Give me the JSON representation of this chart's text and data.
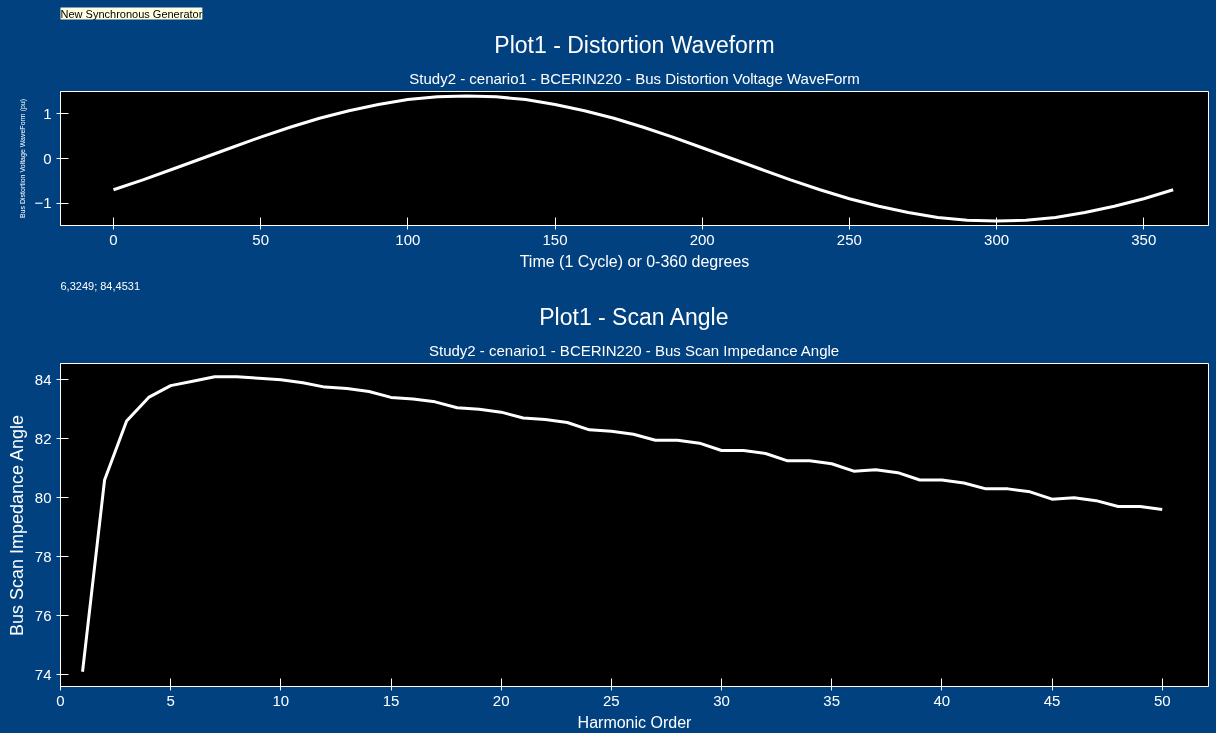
{
  "chart_data": [
    {
      "type": "line",
      "title": "Plot1 - Distortion Waveform",
      "subtitle": "Study2 - cenario1 - BCERIN220 - Bus Distortion Voltage WaveForm",
      "xlabel": "Time (1 Cycle) or 0-360 degrees",
      "ylabel": "Bus Distortion Voltage WaveForm (pu)",
      "annotations": [
        "New Synchronous Generator"
      ],
      "x": [
        0,
        10,
        20,
        30,
        40,
        50,
        60,
        70,
        80,
        90,
        100,
        110,
        120,
        130,
        140,
        150,
        160,
        170,
        180,
        190,
        200,
        210,
        220,
        230,
        240,
        250,
        260,
        270,
        280,
        290,
        300,
        310,
        320,
        330,
        340,
        350,
        360
      ],
      "series": [
        {
          "color": "#ffffff",
          "values": [
            -0.7,
            -0.48,
            -0.24,
            0,
            0.24,
            0.48,
            0.7,
            0.9,
            1.07,
            1.21,
            1.32,
            1.38,
            1.4,
            1.38,
            1.32,
            1.21,
            1.07,
            0.9,
            0.7,
            0.48,
            0.24,
            0,
            -0.24,
            -0.48,
            -0.7,
            -0.9,
            -1.07,
            -1.21,
            -1.32,
            -1.38,
            -1.4,
            -1.38,
            -1.32,
            -1.21,
            -1.07,
            -0.9,
            -0.7
          ]
        }
      ],
      "xlim": [
        -18,
        372
      ],
      "ylim": [
        -1.5,
        1.5
      ],
      "xticks": [
        0,
        50,
        100,
        150,
        200,
        250,
        300,
        350
      ],
      "yticks": [
        -1,
        0,
        1
      ],
      "grid": false,
      "marker": "none",
      "line_style": "solid"
    },
    {
      "type": "line",
      "title": "Plot1 - Scan Angle",
      "subtitle": "Study2 - cenario1 - BCERIN220 - Bus Scan Impedance Angle",
      "xlabel": "Harmonic Order",
      "ylabel": "Bus Scan Impedance Angle",
      "annotations": [
        "6,3249; 84,4531"
      ],
      "x": [
        1,
        2,
        3,
        4,
        5,
        6,
        7,
        8,
        9,
        10,
        11,
        12,
        13,
        14,
        15,
        16,
        17,
        18,
        19,
        20,
        21,
        22,
        23,
        24,
        25,
        26,
        27,
        28,
        29,
        30,
        31,
        32,
        33,
        34,
        35,
        36,
        37,
        38,
        39,
        40,
        41,
        42,
        43,
        44,
        45,
        46,
        47,
        48,
        49,
        50
      ],
      "series": [
        {
          "color": "#ffffff",
          "values": [
            74.1,
            80.6,
            82.6,
            83.4,
            83.8,
            83.95,
            84.1,
            84.1,
            84.05,
            84.0,
            83.9,
            83.75,
            83.7,
            83.6,
            83.4,
            83.35,
            83.25,
            83.05,
            83.0,
            82.9,
            82.7,
            82.65,
            82.55,
            82.3,
            82.25,
            82.15,
            81.95,
            81.95,
            81.85,
            81.6,
            81.6,
            81.5,
            81.25,
            81.25,
            81.15,
            80.9,
            80.95,
            80.85,
            80.6,
            80.6,
            80.5,
            80.3,
            80.3,
            80.2,
            79.95,
            80.0,
            79.9,
            79.7,
            79.7,
            79.6
          ]
        }
      ],
      "xlim": [
        0,
        52.1
      ],
      "ylim": [
        73.6,
        84.55
      ],
      "xticks": [
        0,
        5,
        10,
        15,
        20,
        25,
        30,
        35,
        40,
        45,
        50
      ],
      "yticks": [
        74,
        76,
        78,
        80,
        82,
        84
      ],
      "grid": false,
      "marker": "none",
      "line_style": "solid"
    }
  ]
}
